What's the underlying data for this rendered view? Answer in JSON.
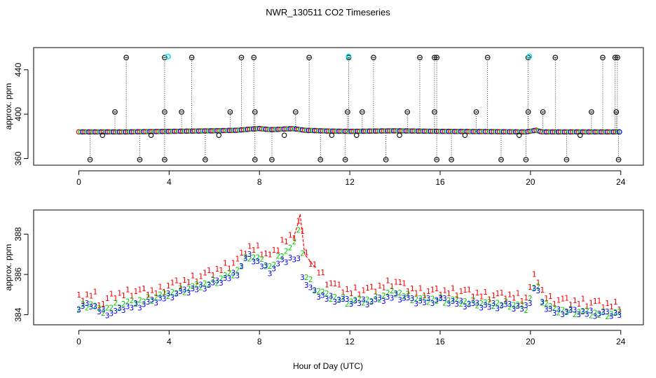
{
  "chart_data": [
    {
      "type": "scatter",
      "title": "NWR_130511  CO2 Timeseries",
      "xlabel": "Hour of Day (UTC)",
      "ylabel": "approx. ppm",
      "xlim": [
        -2,
        25
      ],
      "ylim": [
        354,
        460
      ],
      "xticks": [
        0,
        4,
        8,
        12,
        16,
        20,
        24
      ],
      "yticks": [
        360,
        400,
        440
      ],
      "baseline": [
        [
          0,
          384
        ],
        [
          2,
          384
        ],
        [
          4,
          384.5
        ],
        [
          6,
          385
        ],
        [
          7,
          385.5
        ],
        [
          7.6,
          386.5
        ],
        [
          8,
          387
        ],
        [
          8.5,
          386
        ],
        [
          9.5,
          387
        ],
        [
          10,
          385.5
        ],
        [
          11,
          384.8
        ],
        [
          12,
          384.5
        ],
        [
          14,
          385
        ],
        [
          16,
          384.5
        ],
        [
          18,
          384.3
        ],
        [
          19.8,
          384
        ],
        [
          20.25,
          385.5
        ],
        [
          20.5,
          384
        ],
        [
          22,
          384
        ],
        [
          24,
          384
        ]
      ],
      "high_spikes": [
        2.1,
        3.8,
        5.0,
        7.2,
        7.75,
        10.2,
        11.95,
        13.05,
        15.1,
        15.75,
        15.85,
        18.1,
        19.9,
        21.1,
        23.2,
        23.75,
        23.85
      ],
      "mid_spikes": [
        1.6,
        3.8,
        4.55,
        6.7,
        7.8,
        9.6,
        11.9,
        12.55,
        14.55,
        15.75,
        17.6,
        19.9,
        20.55,
        22.7,
        23.8
      ],
      "low_spikes": [
        0.5,
        2.7,
        3.8,
        5.6,
        7.8,
        8.55,
        10.7,
        11.8,
        13.6,
        15.85,
        16.5,
        18.7,
        19.8,
        21.6,
        23.9
      ],
      "dip_points": [
        1.05,
        3.2,
        6.2,
        9.1,
        11.2,
        12.3,
        14.2,
        17.1,
        19.5,
        22.2
      ],
      "cyan_points": [
        3.95,
        11.95,
        19.95
      ],
      "series": [
        {
          "name": "1",
          "color": "#ff0000"
        },
        {
          "name": "2",
          "color": "#00cd00"
        },
        {
          "name": "3",
          "color": "#0000ff"
        }
      ]
    },
    {
      "type": "scatter",
      "xlabel": "Hour of Day (UTC)",
      "ylabel": "approx. ppm",
      "xlim": [
        -2,
        25
      ],
      "ylim": [
        383.5,
        389.2
      ],
      "xticks": [
        0,
        4,
        8,
        12,
        16,
        20,
        24
      ],
      "yticks": [
        384,
        386,
        388
      ],
      "series": [
        {
          "name": "1",
          "color": "#ff0000",
          "points": [
            [
              0,
              384.8
            ],
            [
              0.25,
              384.8
            ],
            [
              0.5,
              385
            ],
            [
              0.75,
              384.9
            ],
            [
              1,
              384.4
            ],
            [
              1.5,
              384.9
            ],
            [
              2,
              385
            ],
            [
              2.5,
              385.1
            ],
            [
              3,
              385.1
            ],
            [
              3.5,
              385.1
            ],
            [
              4,
              385.4
            ],
            [
              5,
              385.7
            ],
            [
              6,
              386.1
            ],
            [
              7,
              386.6
            ],
            [
              7.5,
              387.3
            ],
            [
              8,
              387.2
            ],
            [
              8.5,
              386.8
            ],
            [
              9,
              387.6
            ],
            [
              9.5,
              387.8
            ],
            [
              9.7,
              388.5
            ],
            [
              9.8,
              389
            ],
            [
              10,
              387
            ],
            [
              10.5,
              386.3
            ],
            [
              11,
              385.6
            ],
            [
              11.5,
              385.3
            ],
            [
              12,
              385.1
            ],
            [
              13,
              385.2
            ],
            [
              13.5,
              385.4
            ],
            [
              14,
              385.6
            ],
            [
              14.5,
              385.3
            ],
            [
              15,
              385.1
            ],
            [
              16,
              385.1
            ],
            [
              17,
              385.1
            ],
            [
              18,
              384.9
            ],
            [
              19,
              384.9
            ],
            [
              19.8,
              384.8
            ],
            [
              20.1,
              385.5
            ],
            [
              20.25,
              386.3
            ],
            [
              20.4,
              385.3
            ],
            [
              20.8,
              384.7
            ],
            [
              22,
              384.6
            ],
            [
              23,
              384.5
            ],
            [
              24,
              384.4
            ]
          ]
        },
        {
          "name": "2",
          "color": "#00cd00",
          "points": [
            [
              0,
              384.3
            ],
            [
              0.5,
              384.5
            ],
            [
              1,
              384.1
            ],
            [
              1.5,
              384.4
            ],
            [
              2,
              384.5
            ],
            [
              3,
              384.7
            ],
            [
              4,
              385
            ],
            [
              5,
              385.3
            ],
            [
              6,
              385.6
            ],
            [
              7,
              386.1
            ],
            [
              7.5,
              386.9
            ],
            [
              8,
              386.7
            ],
            [
              8.5,
              386.3
            ],
            [
              9,
              387
            ],
            [
              9.5,
              387.3
            ],
            [
              9.75,
              388.4
            ],
            [
              10,
              386
            ],
            [
              10.5,
              385.2
            ],
            [
              11,
              384.9
            ],
            [
              12,
              384.6
            ],
            [
              13,
              384.7
            ],
            [
              14,
              385.1
            ],
            [
              15,
              384.7
            ],
            [
              16,
              384.7
            ],
            [
              17,
              384.6
            ],
            [
              18,
              384.5
            ],
            [
              19,
              384.5
            ],
            [
              19.8,
              384.3
            ],
            [
              20.1,
              385
            ],
            [
              20.25,
              385.9
            ],
            [
              20.4,
              384.8
            ],
            [
              21,
              384.2
            ],
            [
              22,
              384.1
            ],
            [
              23,
              384
            ],
            [
              24,
              384
            ]
          ]
        },
        {
          "name": "3",
          "color": "#0000ff",
          "points": [
            [
              0,
              384.2
            ],
            [
              0.5,
              384.5
            ],
            [
              1,
              384.1
            ],
            [
              1.5,
              384
            ],
            [
              2,
              384.3
            ],
            [
              3,
              384.5
            ],
            [
              4,
              384.9
            ],
            [
              5,
              385.2
            ],
            [
              6,
              385.5
            ],
            [
              7,
              386
            ],
            [
              7.5,
              386.9
            ],
            [
              8,
              386.5
            ],
            [
              8.5,
              386.1
            ],
            [
              9,
              386.6
            ],
            [
              9.5,
              386.8
            ],
            [
              9.75,
              386.6
            ],
            [
              10,
              385.5
            ],
            [
              10.5,
              385
            ],
            [
              11,
              384.8
            ],
            [
              12,
              384.6
            ],
            [
              13,
              384.6
            ],
            [
              14,
              384.9
            ],
            [
              15,
              384.6
            ],
            [
              16,
              384.7
            ],
            [
              17,
              384.5
            ],
            [
              18,
              384.4
            ],
            [
              19,
              384.4
            ],
            [
              19.8,
              384.3
            ],
            [
              20.1,
              384.9
            ],
            [
              20.25,
              385.8
            ],
            [
              20.4,
              384.6
            ],
            [
              21,
              384.1
            ],
            [
              22,
              384.1
            ],
            [
              23,
              384
            ],
            [
              24,
              384
            ]
          ]
        }
      ]
    }
  ]
}
